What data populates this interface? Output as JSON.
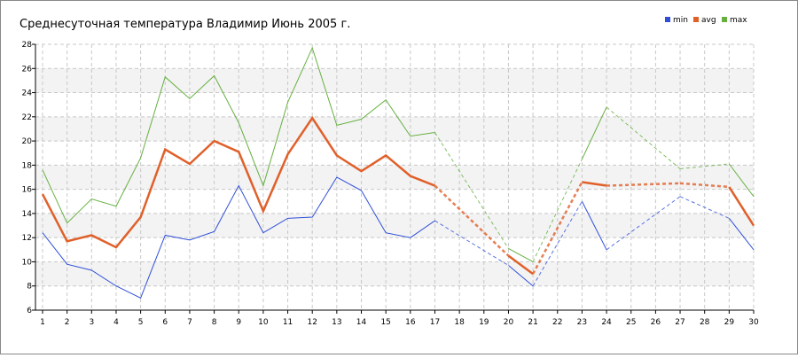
{
  "chart_data": {
    "type": "line",
    "title": "Среднесуточная температура Владимир  Июнь 2005 г.",
    "x": [
      1,
      2,
      3,
      4,
      5,
      6,
      7,
      8,
      9,
      10,
      11,
      12,
      13,
      14,
      15,
      16,
      17,
      18,
      19,
      20,
      21,
      22,
      23,
      24,
      25,
      26,
      27,
      28,
      29,
      30
    ],
    "xlim": [
      1,
      30
    ],
    "ylim": [
      6,
      28
    ],
    "yticks": [
      6,
      8,
      10,
      12,
      14,
      16,
      18,
      20,
      22,
      24,
      26,
      28
    ],
    "grid": true,
    "series": [
      {
        "name": "min",
        "color": "#2f4fd8",
        "values": [
          12.4,
          9.8,
          9.3,
          8.0,
          7.0,
          12.2,
          11.8,
          12.5,
          16.3,
          12.4,
          13.6,
          13.7,
          17.0,
          15.9,
          12.4,
          12.0,
          13.4,
          null,
          null,
          9.7,
          8.0,
          null,
          15.0,
          11.0,
          null,
          null,
          15.4,
          null,
          13.6,
          11.0
        ]
      },
      {
        "name": "avg",
        "color": "#e0602a",
        "values": [
          15.6,
          11.7,
          12.2,
          11.2,
          13.7,
          19.3,
          18.1,
          20.0,
          19.1,
          14.2,
          18.9,
          21.9,
          18.8,
          17.5,
          18.8,
          17.1,
          16.3,
          null,
          null,
          10.5,
          9.0,
          null,
          16.6,
          16.3,
          null,
          null,
          16.5,
          null,
          16.2,
          13.0
        ]
      },
      {
        "name": "max",
        "color": "#66b040",
        "values": [
          17.6,
          13.2,
          15.2,
          14.6,
          18.6,
          25.3,
          23.5,
          25.4,
          21.5,
          16.3,
          23.2,
          27.7,
          21.3,
          21.8,
          23.4,
          20.4,
          20.7,
          null,
          null,
          11.1,
          10.0,
          null,
          18.5,
          22.8,
          null,
          null,
          17.7,
          null,
          18.1,
          15.4
        ]
      }
    ]
  }
}
